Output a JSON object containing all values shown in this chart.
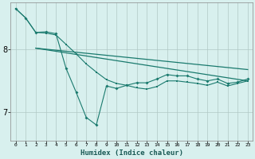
{
  "xlabel": "Humidex (Indice chaleur)",
  "background_color": "#d8f0ee",
  "grid_color": "#b0c8c5",
  "line_color": "#1a7a6e",
  "xlim": [
    -0.5,
    23.5
  ],
  "ylim": [
    6.55,
    8.75
  ],
  "yticks": [
    7,
    8
  ],
  "xticks": [
    0,
    1,
    2,
    3,
    4,
    5,
    6,
    7,
    8,
    9,
    10,
    11,
    12,
    13,
    14,
    15,
    16,
    17,
    18,
    19,
    20,
    21,
    22,
    23
  ],
  "series1_x": [
    0,
    1,
    2,
    3,
    4,
    5,
    6,
    7,
    8,
    9,
    10,
    11,
    12,
    13,
    14,
    15,
    16,
    17,
    18,
    19,
    20,
    21,
    22,
    23
  ],
  "series1_y": [
    8.65,
    8.5,
    8.27,
    8.28,
    8.25,
    7.7,
    7.32,
    6.92,
    6.8,
    7.42,
    7.38,
    7.43,
    7.47,
    7.47,
    7.53,
    7.6,
    7.58,
    7.58,
    7.53,
    7.5,
    7.53,
    7.46,
    7.48,
    7.53
  ],
  "series2_x": [
    2,
    23
  ],
  "series2_y": [
    8.02,
    7.5
  ],
  "series3_x": [
    2,
    23
  ],
  "series3_y": [
    8.02,
    7.68
  ],
  "series4_x": [
    0,
    1,
    2,
    3,
    4,
    5,
    6,
    7,
    8,
    9,
    10,
    11,
    12,
    13,
    14,
    15,
    16,
    17,
    18,
    19,
    20,
    21,
    22,
    23
  ],
  "series4_y": [
    8.65,
    8.5,
    8.27,
    8.26,
    8.23,
    8.08,
    7.93,
    7.77,
    7.64,
    7.52,
    7.46,
    7.43,
    7.39,
    7.37,
    7.41,
    7.5,
    7.5,
    7.48,
    7.46,
    7.43,
    7.48,
    7.42,
    7.46,
    7.5
  ]
}
